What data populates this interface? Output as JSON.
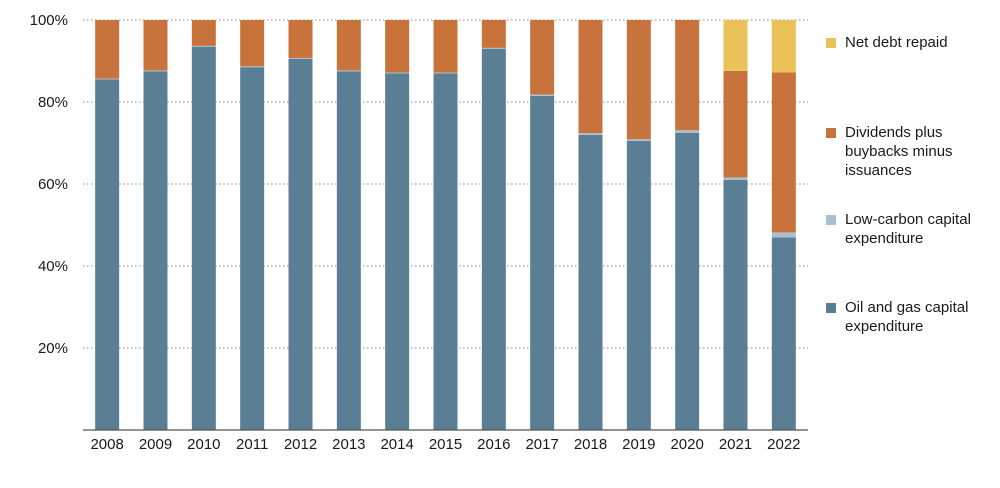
{
  "chart_data": {
    "type": "bar",
    "stacked": true,
    "categories": [
      "2008",
      "2009",
      "2010",
      "2011",
      "2012",
      "2013",
      "2014",
      "2015",
      "2016",
      "2017",
      "2018",
      "2019",
      "2020",
      "2021",
      "2022"
    ],
    "series": [
      {
        "name": "Oil and gas capital expenditure",
        "color": "#5a7f95",
        "values": [
          85.5,
          87.5,
          93.5,
          88.5,
          90.5,
          87.5,
          87,
          87,
          93,
          81.5,
          72,
          70.5,
          72.5,
          61,
          47
        ]
      },
      {
        "name": "Low-carbon capital expenditure",
        "color": "#a9c0d3",
        "values": [
          0.2,
          0.2,
          0.2,
          0.2,
          0.2,
          0.2,
          0.2,
          0.2,
          0.2,
          0.3,
          0.4,
          0.4,
          0.6,
          0.6,
          1.2
        ]
      },
      {
        "name": "Dividends plus buybacks minus issuances",
        "color": "#c8733b",
        "values": [
          14.3,
          12.3,
          6.3,
          11.3,
          9.3,
          12.3,
          12.8,
          12.8,
          6.8,
          18.2,
          27.6,
          29.1,
          26.9,
          26,
          39
        ]
      },
      {
        "name": "Net debt repaid",
        "color": "#ebc15a",
        "values": [
          0,
          0,
          0,
          0,
          0,
          0,
          0,
          0,
          0,
          0,
          0,
          0,
          0,
          12.4,
          12.8
        ]
      }
    ],
    "ylim": [
      0,
      100
    ],
    "yticks": [
      "20%",
      "40%",
      "60%",
      "80%",
      "100%"
    ],
    "ytick_values": [
      20,
      40,
      60,
      80,
      100
    ],
    "grid": true,
    "legend": "right"
  }
}
